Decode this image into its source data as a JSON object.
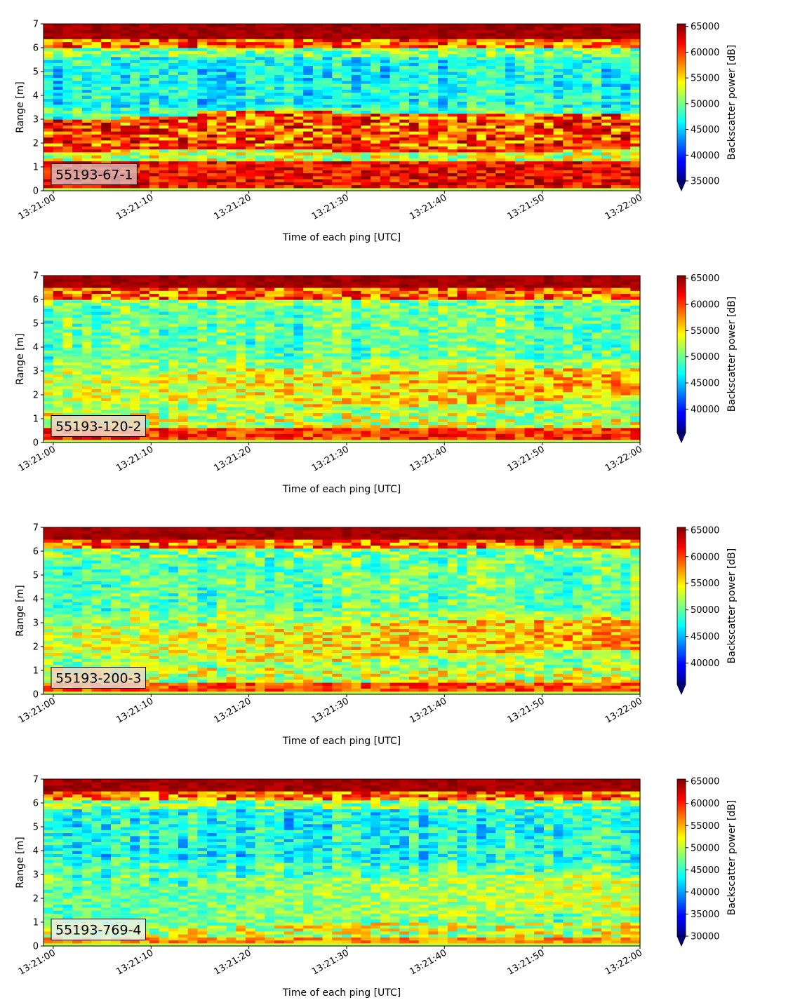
{
  "chart_data": [
    {
      "type": "heatmap",
      "annotation": "55193-67-1",
      "xlabel": "Time of each ping [UTC]",
      "ylabel": "Range [m]",
      "x_ticks": [
        "13:21:00",
        "13:21:10",
        "13:21:20",
        "13:21:30",
        "13:21:40",
        "13:21:50",
        "13:22:00"
      ],
      "x_range": [
        "13:20:59",
        "13:22:00"
      ],
      "ylim": [
        0,
        7
      ],
      "y_ticks": [
        "0",
        "1",
        "2",
        "3",
        "4",
        "5",
        "6",
        "7"
      ],
      "colorbar": {
        "label": "Backscatter power [dB]",
        "range": [
          35000,
          65500
        ],
        "ticks": [
          "35000",
          "40000",
          "45000",
          "50000",
          "55000",
          "60000",
          "65000"
        ],
        "extend": "min"
      },
      "colormap": "jet",
      "features": {
        "surface_band_m": [
          6.25,
          7.0
        ],
        "layer_m": [
          1.6,
          3.0
        ],
        "bottom_band_m": [
          0.0,
          1.2
        ],
        "bottom_strength": 1.0,
        "background": "low"
      }
    },
    {
      "type": "heatmap",
      "annotation": "55193-120-2",
      "xlabel": "Time of each ping [UTC]",
      "ylabel": "Range [m]",
      "x_ticks": [
        "13:21:00",
        "13:21:10",
        "13:21:20",
        "13:21:30",
        "13:21:40",
        "13:21:50",
        "13:22:00"
      ],
      "x_range": [
        "13:20:59",
        "13:22:00"
      ],
      "ylim": [
        0,
        7
      ],
      "y_ticks": [
        "0",
        "1",
        "2",
        "3",
        "4",
        "5",
        "6",
        "7"
      ],
      "colorbar": {
        "label": "Backscatter power [dB]",
        "range": [
          35500,
          65500
        ],
        "ticks": [
          "40000",
          "45000",
          "50000",
          "55000",
          "60000",
          "65000"
        ],
        "extend": "min"
      },
      "colormap": "jet",
      "features": {
        "surface_band_m": [
          6.3,
          7.0
        ],
        "layer_m": [
          1.6,
          2.8
        ],
        "bottom_band_m": [
          0.0,
          0.6
        ],
        "bottom_strength": 0.9,
        "background": "mid"
      }
    },
    {
      "type": "heatmap",
      "annotation": "55193-200-3",
      "xlabel": "Time of each ping [UTC]",
      "ylabel": "Range [m]",
      "x_ticks": [
        "13:21:00",
        "13:21:10",
        "13:21:20",
        "13:21:30",
        "13:21:40",
        "13:21:50",
        "13:22:00"
      ],
      "x_range": [
        "13:20:59",
        "13:22:00"
      ],
      "ylim": [
        0,
        7
      ],
      "y_ticks": [
        "0",
        "1",
        "2",
        "3",
        "4",
        "5",
        "6",
        "7"
      ],
      "colorbar": {
        "label": "Backscatter power [dB]",
        "range": [
          36000,
          65500
        ],
        "ticks": [
          "40000",
          "45000",
          "50000",
          "55000",
          "60000",
          "65000"
        ],
        "extend": "min"
      },
      "colormap": "jet",
      "features": {
        "surface_band_m": [
          6.4,
          7.0
        ],
        "layer_m": [
          1.5,
          2.8
        ],
        "bottom_band_m": [
          0.0,
          0.5
        ],
        "bottom_strength": 0.85,
        "background": "mid"
      }
    },
    {
      "type": "heatmap",
      "annotation": "55193-769-4",
      "xlabel": "Time of each ping [UTC]",
      "ylabel": "Range [m]",
      "x_ticks": [
        "13:21:00",
        "13:21:10",
        "13:21:20",
        "13:21:30",
        "13:21:40",
        "13:21:50",
        "13:22:00"
      ],
      "x_range": [
        "13:20:59",
        "13:22:00"
      ],
      "ylim": [
        0,
        7
      ],
      "y_ticks": [
        "0",
        "1",
        "2",
        "3",
        "4",
        "5",
        "6",
        "7"
      ],
      "colorbar": {
        "label": "Backscatter power [dB]",
        "range": [
          30000,
          65500
        ],
        "ticks": [
          "30000",
          "35000",
          "40000",
          "45000",
          "50000",
          "55000",
          "60000",
          "65000"
        ],
        "extend": "min"
      },
      "colormap": "jet",
      "features": {
        "surface_band_m": [
          6.35,
          6.6
        ],
        "layer_m": [
          1.0,
          2.6
        ],
        "bottom_band_m": [
          0.0,
          0.35
        ],
        "bottom_strength": 0.7,
        "background": "low"
      }
    }
  ]
}
